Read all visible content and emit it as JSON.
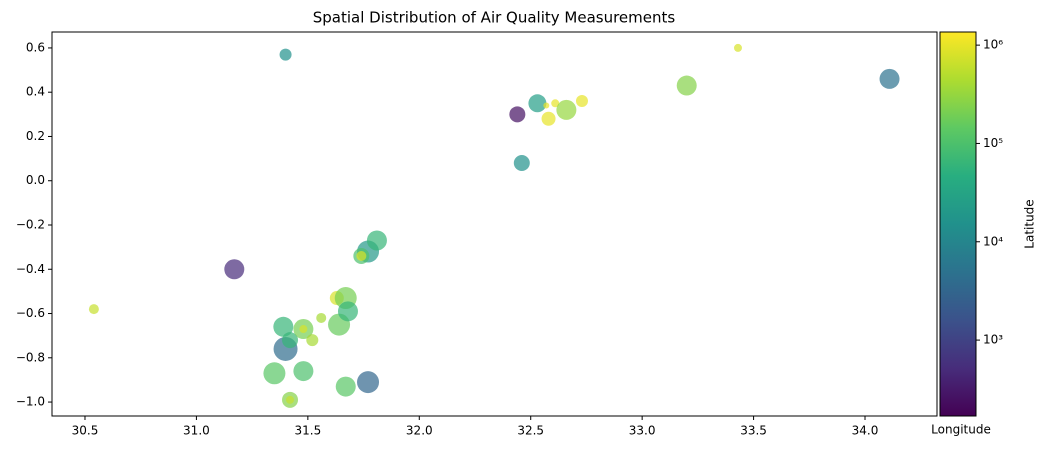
{
  "chart_data": {
    "type": "scatter",
    "title": "Spatial Distribution of Air Quality Measurements",
    "x_label": "Longitude",
    "colorbar_label": "Latitude",
    "colormap": "viridis",
    "color_scale": "log",
    "alpha": 0.7,
    "xlim": [
      30.352,
      34.323
    ],
    "ylim": [
      -1.063,
      0.672
    ],
    "xticks": [
      30.5,
      {
        "value": 31,
        "label": "31.0"
      },
      31.5,
      {
        "value": 32,
        "label": "32.0"
      },
      32.5,
      {
        "value": 33,
        "label": "33.0"
      },
      33.5,
      {
        "value": 34,
        "label": "34.0"
      }
    ],
    "yticks": [
      {
        "value": -1,
        "label": "−1.0"
      },
      {
        "value": -0.8,
        "label": "−0.8"
      },
      {
        "value": -0.6,
        "label": "−0.6"
      },
      {
        "value": -0.4,
        "label": "−0.4"
      },
      {
        "value": -0.2,
        "label": "−0.2"
      },
      {
        "value": 0,
        "label": "0.0"
      },
      0.2,
      0.4,
      0.6
    ],
    "clim": [
      169,
      1360000
    ],
    "cticks": [
      {
        "value": 1000,
        "label": "10³"
      },
      {
        "value": 10000,
        "label": "10⁴"
      },
      {
        "value": 100000,
        "label": "10⁵"
      },
      {
        "value": 1000000,
        "label": "10⁶"
      }
    ],
    "x": [
      30.54,
      31.17,
      31.4,
      31.42,
      31.42,
      31.35,
      31.48,
      31.39,
      31.4,
      31.42,
      31.48,
      31.48,
      31.52,
      31.56,
      31.63,
      31.67,
      31.64,
      31.68,
      31.67,
      31.77,
      31.77,
      31.81,
      31.74,
      31.74,
      32.44,
      32.46,
      32.53,
      32.57,
      32.58,
      32.61,
      32.66,
      32.73,
      33.2,
      33.43,
      34.11
    ],
    "y": [
      -0.58,
      -0.4,
      0.57,
      -0.99,
      -0.99,
      -0.87,
      -0.86,
      -0.66,
      -0.76,
      -0.72,
      -0.67,
      -0.67,
      -0.72,
      -0.62,
      -0.53,
      -0.53,
      -0.65,
      -0.59,
      -0.93,
      -0.91,
      -0.32,
      -0.27,
      -0.34,
      -0.34,
      0.3,
      0.08,
      0.35,
      0.34,
      0.28,
      0.35,
      0.32,
      0.36,
      0.43,
      0.6,
      0.46
    ],
    "c": [
      630000,
      500,
      16000,
      250000,
      630000,
      126000,
      100000,
      63000,
      4000,
      63000,
      200000,
      800000,
      400000,
      400000,
      800000,
      200000,
      160000,
      63000,
      126000,
      3200,
      20000,
      63000,
      100000,
      800000,
      250,
      16000,
      25000,
      1000000,
      1000000,
      1000000,
      320000,
      1000000,
      250000,
      800000,
      5000
    ],
    "sizes": [
      25,
      100,
      36,
      64,
      16,
      121,
      100,
      100,
      144,
      64,
      100,
      16,
      36,
      25,
      49,
      121,
      121,
      100,
      100,
      121,
      121,
      100,
      64,
      25,
      64,
      64,
      81,
      9,
      49,
      16,
      100,
      36,
      100,
      16,
      100
    ]
  }
}
